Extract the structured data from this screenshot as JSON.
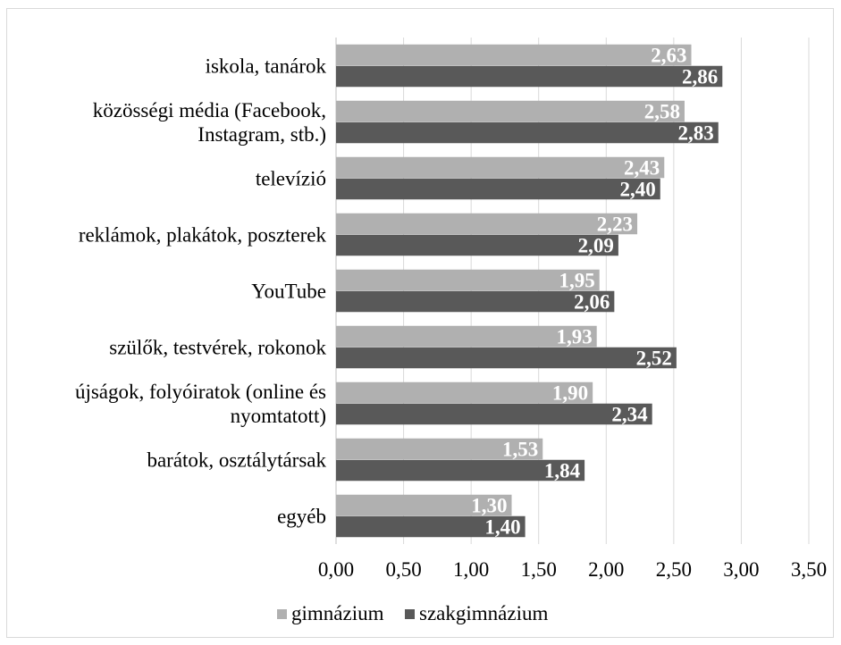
{
  "chart_data": {
    "type": "bar",
    "orientation": "horizontal",
    "categories": [
      [
        "iskola, tanárok"
      ],
      [
        "közösségi média (Facebook,",
        "Instagram, stb.)"
      ],
      [
        "televízió"
      ],
      [
        "reklámok, plakátok, poszterek"
      ],
      [
        "YouTube"
      ],
      [
        "szülők, testvérek, rokonok"
      ],
      [
        "újságok, folyóiratok (online és",
        "nyomtatott)"
      ],
      [
        "barátok, osztálytársak"
      ],
      [
        "egyéb"
      ]
    ],
    "series": [
      {
        "name": "gimnázium",
        "color": "#b0b0b0",
        "values": [
          2.63,
          2.58,
          2.43,
          2.23,
          1.95,
          1.93,
          1.9,
          1.53,
          1.3
        ],
        "labels": [
          "2,63",
          "2,58",
          "2,43",
          "2,23",
          "1,95",
          "1,93",
          "1,90",
          "1,53",
          "1,30"
        ]
      },
      {
        "name": "szakgimnázium",
        "color": "#595959",
        "values": [
          2.86,
          2.83,
          2.4,
          2.09,
          2.06,
          2.52,
          2.34,
          1.84,
          1.4
        ],
        "labels": [
          "2,86",
          "2,83",
          "2,40",
          "2,09",
          "2,06",
          "2,52",
          "2,34",
          "1,84",
          "1,40"
        ]
      }
    ],
    "xticks": [
      0,
      0.5,
      1,
      1.5,
      2,
      2.5,
      3,
      3.5
    ],
    "xtick_labels": [
      "0,00",
      "0,50",
      "1,00",
      "1,50",
      "2,00",
      "2,50",
      "3,00",
      "3,50"
    ],
    "xlim": [
      0,
      3.5
    ],
    "grid": "vertical",
    "legend": "bottom",
    "gridline_color": "#d9d9d9"
  }
}
